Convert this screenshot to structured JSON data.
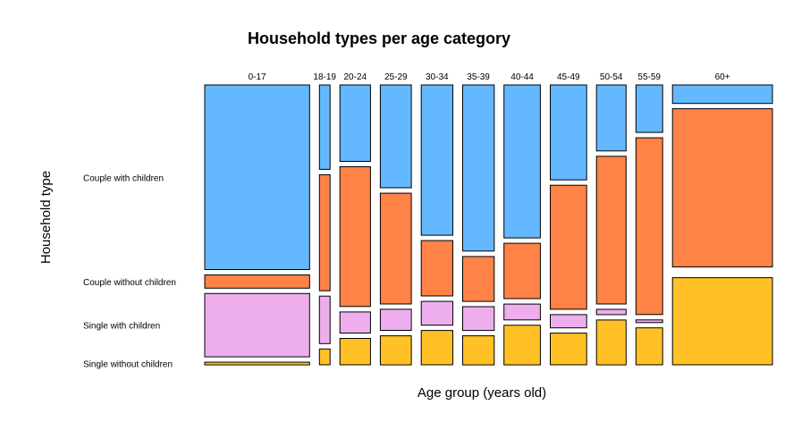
{
  "chart_data": {
    "type": "mosaic",
    "title": "Household types per age category",
    "xlabel": "Age group (years old)",
    "ylabel": "Household type",
    "categories": [
      "0-17",
      "18-19",
      "20-24",
      "25-29",
      "30-34",
      "35-39",
      "40-44",
      "45-49",
      "50-54",
      "55-59",
      "60+"
    ],
    "column_share": [
      0.216,
      0.022,
      0.063,
      0.064,
      0.065,
      0.065,
      0.075,
      0.075,
      0.061,
      0.055,
      0.206
    ],
    "row_labels": [
      "Couple with children",
      "Couple without children",
      "Single with children",
      "Single without children"
    ],
    "series": [
      {
        "name": "Single without children",
        "color": "#FFC125",
        "values": [
          0.01,
          0.06,
          0.1,
          0.11,
          0.13,
          0.11,
          0.15,
          0.12,
          0.17,
          0.14,
          0.33
        ]
      },
      {
        "name": "Single with children",
        "color": "#EEAEEE",
        "values": [
          0.24,
          0.18,
          0.08,
          0.08,
          0.09,
          0.09,
          0.06,
          0.05,
          0.02,
          0.01,
          0.0
        ]
      },
      {
        "name": "Couple without children",
        "color": "#FF8247",
        "values": [
          0.05,
          0.44,
          0.53,
          0.42,
          0.21,
          0.17,
          0.21,
          0.47,
          0.56,
          0.67,
          0.6
        ]
      },
      {
        "name": "Couple with children",
        "color": "#63B8FF",
        "values": [
          0.7,
          0.32,
          0.29,
          0.39,
          0.57,
          0.63,
          0.58,
          0.36,
          0.25,
          0.18,
          0.07
        ]
      }
    ]
  }
}
